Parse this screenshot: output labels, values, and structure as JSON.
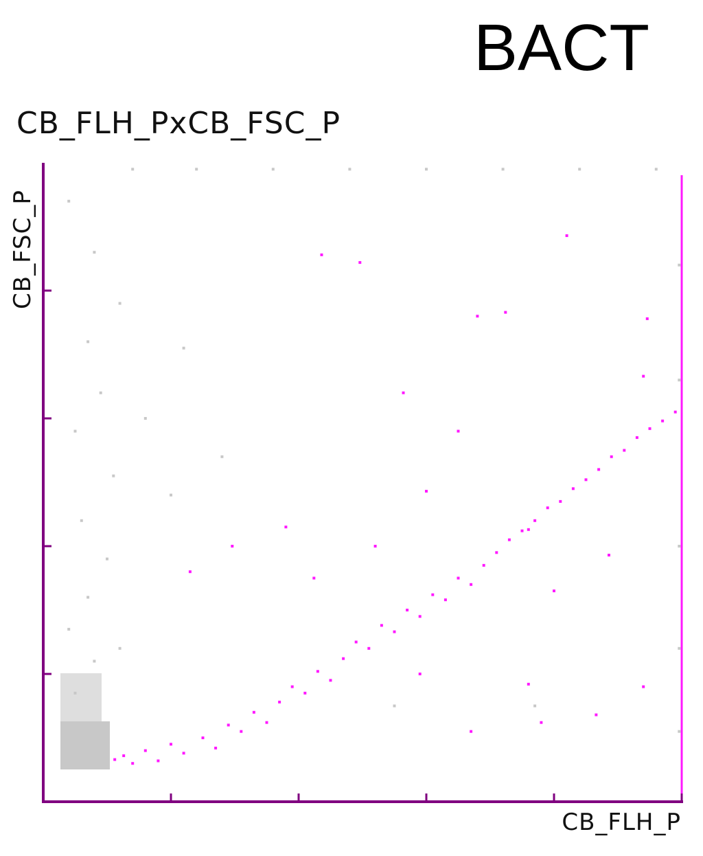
{
  "chart_data": {
    "type": "scatter",
    "title": "BACT",
    "subtitle": "CB_FLH_PxCB_FSC_P",
    "xlabel": "CB_FLH_P",
    "ylabel": "CB_FSC_P",
    "xlim": [
      0,
      5
    ],
    "ylim": [
      0,
      5
    ],
    "x_ticks": [
      1,
      2,
      3,
      4,
      5
    ],
    "y_ticks": [
      1,
      2,
      3,
      4
    ],
    "grid": false,
    "legend": "none",
    "colors": {
      "gated": "#ff19ff",
      "ungated": "#c8c8c8",
      "axis": "#800080",
      "gate_edge": "#ff19ff"
    },
    "series": [
      {
        "role": "gated",
        "points": [
          [
            0.56,
            0.33
          ],
          [
            0.63,
            0.36
          ],
          [
            0.7,
            0.3
          ],
          [
            0.8,
            0.4
          ],
          [
            0.9,
            0.32
          ],
          [
            1.0,
            0.45
          ],
          [
            1.1,
            0.38
          ],
          [
            1.25,
            0.5
          ],
          [
            1.35,
            0.42
          ],
          [
            1.45,
            0.6
          ],
          [
            1.55,
            0.55
          ],
          [
            1.65,
            0.7
          ],
          [
            1.75,
            0.62
          ],
          [
            1.85,
            0.78
          ],
          [
            1.95,
            0.9
          ],
          [
            2.05,
            0.85
          ],
          [
            2.15,
            1.02
          ],
          [
            2.25,
            0.95
          ],
          [
            2.35,
            1.12
          ],
          [
            2.45,
            1.25
          ],
          [
            2.55,
            1.2
          ],
          [
            2.65,
            1.38
          ],
          [
            2.75,
            1.33
          ],
          [
            2.85,
            1.5
          ],
          [
            2.95,
            1.45
          ],
          [
            3.05,
            1.62
          ],
          [
            3.15,
            1.58
          ],
          [
            3.25,
            1.75
          ],
          [
            3.35,
            1.7
          ],
          [
            3.45,
            1.85
          ],
          [
            3.55,
            1.95
          ],
          [
            3.65,
            2.05
          ],
          [
            3.75,
            2.12
          ],
          [
            3.85,
            2.2
          ],
          [
            3.95,
            2.3
          ],
          [
            4.05,
            2.35
          ],
          [
            4.15,
            2.45
          ],
          [
            4.25,
            2.52
          ],
          [
            4.35,
            2.6
          ],
          [
            4.45,
            2.7
          ],
          [
            4.55,
            2.75
          ],
          [
            4.65,
            2.85
          ],
          [
            4.75,
            2.92
          ],
          [
            4.85,
            2.98
          ],
          [
            4.95,
            3.05
          ],
          [
            1.15,
            1.8
          ],
          [
            1.48,
            2.0
          ],
          [
            1.9,
            2.15
          ],
          [
            2.12,
            1.75
          ],
          [
            2.6,
            2.0
          ],
          [
            2.82,
            3.2
          ],
          [
            3.0,
            2.43
          ],
          [
            3.25,
            2.9
          ],
          [
            3.8,
            2.13
          ],
          [
            4.0,
            1.65
          ],
          [
            4.43,
            1.93
          ],
          [
            4.7,
            3.33
          ],
          [
            4.73,
            3.78
          ],
          [
            3.4,
            3.8
          ],
          [
            3.62,
            3.83
          ],
          [
            2.48,
            4.22
          ],
          [
            2.18,
            4.28
          ],
          [
            4.1,
            4.43
          ],
          [
            2.95,
            1.0
          ],
          [
            3.35,
            0.55
          ],
          [
            3.9,
            0.62
          ],
          [
            4.7,
            0.9
          ],
          [
            4.33,
            0.68
          ],
          [
            3.8,
            0.92
          ]
        ]
      },
      {
        "role": "ungated",
        "points": [
          [
            0.15,
            0.3
          ],
          [
            0.3,
            0.55
          ],
          [
            0.45,
            0.4
          ],
          [
            0.25,
            0.85
          ],
          [
            0.4,
            1.1
          ],
          [
            0.2,
            1.35
          ],
          [
            0.35,
            1.6
          ],
          [
            0.6,
            1.2
          ],
          [
            0.5,
            1.9
          ],
          [
            0.3,
            2.2
          ],
          [
            0.55,
            2.55
          ],
          [
            0.25,
            2.9
          ],
          [
            0.45,
            3.2
          ],
          [
            0.35,
            3.6
          ],
          [
            0.6,
            3.9
          ],
          [
            0.4,
            4.3
          ],
          [
            0.2,
            4.7
          ],
          [
            0.7,
            4.95
          ],
          [
            1.2,
            4.95
          ],
          [
            1.8,
            4.95
          ],
          [
            2.4,
            4.95
          ],
          [
            3.0,
            4.95
          ],
          [
            3.6,
            4.95
          ],
          [
            4.2,
            4.95
          ],
          [
            4.8,
            4.95
          ],
          [
            4.98,
            4.2
          ],
          [
            4.98,
            3.3
          ],
          [
            4.98,
            2.0
          ],
          [
            4.98,
            1.2
          ],
          [
            4.98,
            0.55
          ],
          [
            0.8,
            3.0
          ],
          [
            1.0,
            2.4
          ],
          [
            1.4,
            2.7
          ],
          [
            1.1,
            3.55
          ],
          [
            3.85,
            0.75
          ],
          [
            2.75,
            0.75
          ]
        ]
      }
    ]
  }
}
